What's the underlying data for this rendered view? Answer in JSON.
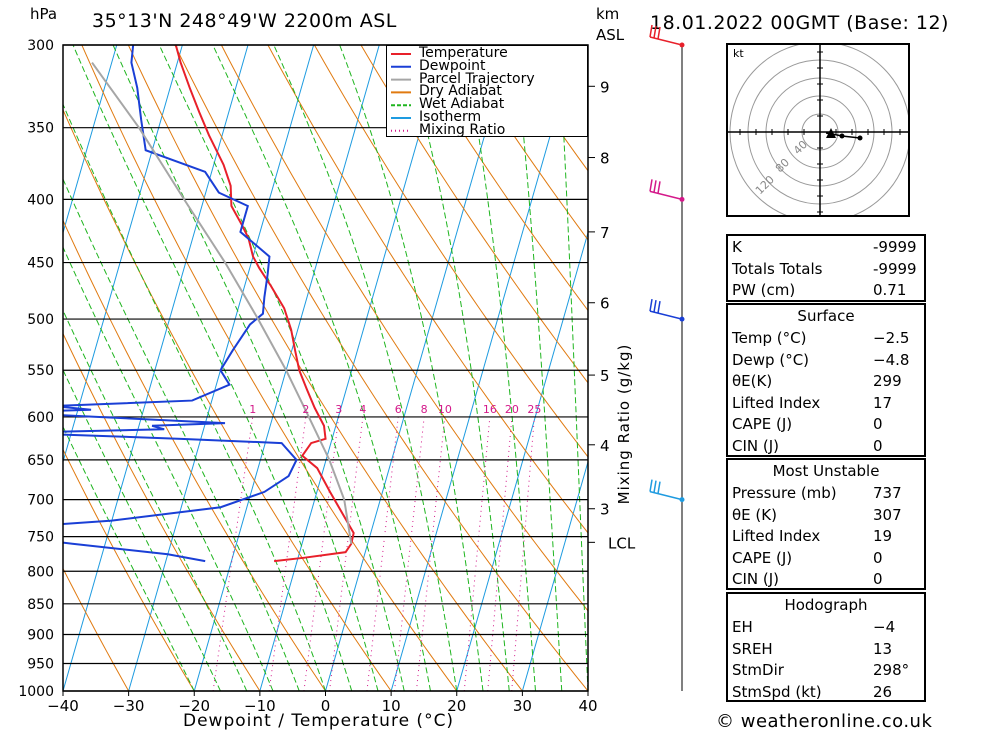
{
  "header": {
    "pressure_unit": "hPa",
    "location": "35°13'N  248°49'W  2200m  ASL",
    "km_unit": "km",
    "km_sub": "ASL",
    "datetime": "18.01.2022  00GMT  (Base: 12)"
  },
  "chart_data": {
    "type": "skew-t",
    "xlabel": "Dewpoint / Temperature (°C)",
    "ylabel_left": "hPa",
    "ylabel_right": "Mixing Ratio (g/kg)",
    "x_ticks": [
      -40,
      -30,
      -20,
      -10,
      0,
      10,
      20,
      30,
      40
    ],
    "x_tick_labels": [
      "−40",
      "−30",
      "−20",
      "−10",
      "0",
      "10",
      "20",
      "30",
      "40"
    ],
    "xlim": [
      -40,
      40
    ],
    "pressure_levels": [
      300,
      350,
      400,
      450,
      500,
      550,
      600,
      650,
      700,
      750,
      800,
      850,
      900,
      950,
      1000
    ],
    "ylim": [
      1000,
      300
    ],
    "height_ticks": [
      {
        "label": "9",
        "p": 324
      },
      {
        "label": "8",
        "p": 370
      },
      {
        "label": "7",
        "p": 425
      },
      {
        "label": "6",
        "p": 485
      },
      {
        "label": "5",
        "p": 555
      },
      {
        "label": "4",
        "p": 632
      },
      {
        "label": "3",
        "p": 712
      },
      {
        "label": "LCL",
        "p": 758
      }
    ],
    "mixing_ratio_labels": [
      "1",
      "2",
      "3",
      "4",
      "6",
      "8",
      "10",
      "16",
      "20",
      "25"
    ],
    "mixing_ratio_label_p": 600,
    "legend": {
      "position": "top-right",
      "entries": [
        {
          "name": "Temperature",
          "color": "#e8202a",
          "style": "solid"
        },
        {
          "name": "Dewpoint",
          "color": "#1a3fd6",
          "style": "solid"
        },
        {
          "name": "Parcel Trajectory",
          "color": "#a6a6a6",
          "style": "solid"
        },
        {
          "name": "Dry Adiabat",
          "color": "#e07a10",
          "style": "solid"
        },
        {
          "name": "Wet Adiabat",
          "color": "#1fb51f",
          "style": "dashed"
        },
        {
          "name": "Isotherm",
          "color": "#1e9be0",
          "style": "solid"
        },
        {
          "name": "Mixing Ratio",
          "color": "#d4198a",
          "style": "dotted"
        }
      ]
    },
    "series": [
      {
        "name": "Temperature",
        "color": "#e8202a",
        "points": [
          [
            785,
            -13.5
          ],
          [
            780,
            -9
          ],
          [
            772,
            -3
          ],
          [
            760,
            -2.5
          ],
          [
            745,
            -2.6
          ],
          [
            720,
            -5
          ],
          [
            690,
            -8
          ],
          [
            660,
            -11
          ],
          [
            645,
            -13.8
          ],
          [
            630,
            -13
          ],
          [
            625,
            -11
          ],
          [
            610,
            -11.8
          ],
          [
            590,
            -14
          ],
          [
            570,
            -16
          ],
          [
            550,
            -18
          ],
          [
            530,
            -19.5
          ],
          [
            510,
            -21
          ],
          [
            490,
            -23
          ],
          [
            470,
            -26
          ],
          [
            455,
            -28.5
          ],
          [
            445,
            -30
          ],
          [
            430,
            -31.5
          ],
          [
            420,
            -33
          ],
          [
            405,
            -35.5
          ],
          [
            390,
            -36.5
          ],
          [
            375,
            -38.5
          ],
          [
            355,
            -42
          ],
          [
            340,
            -44.5
          ],
          [
            325,
            -47
          ],
          [
            310,
            -49.5
          ],
          [
            300,
            -51
          ]
        ]
      },
      {
        "name": "Dewpoint",
        "color": "#1a3fd6",
        "points": [
          [
            785,
            -24
          ],
          [
            775,
            -30
          ],
          [
            760,
            -45
          ],
          [
            748,
            -56
          ],
          [
            738,
            -56
          ],
          [
            728,
            -40
          ],
          [
            710,
            -24
          ],
          [
            690,
            -18
          ],
          [
            670,
            -15
          ],
          [
            650,
            -14.5
          ],
          [
            630,
            -17.5
          ],
          [
            625,
            -33
          ],
          [
            618,
            -59
          ],
          [
            614,
            -36
          ],
          [
            610,
            -38
          ],
          [
            607,
            -27
          ],
          [
            595,
            -61
          ],
          [
            592,
            -48
          ],
          [
            588,
            -54
          ],
          [
            582,
            -33
          ],
          [
            565,
            -28
          ],
          [
            550,
            -30
          ],
          [
            530,
            -29
          ],
          [
            505,
            -27.5
          ],
          [
            495,
            -26
          ],
          [
            480,
            -26.5
          ],
          [
            460,
            -27
          ],
          [
            445,
            -27.5
          ],
          [
            425,
            -33
          ],
          [
            405,
            -33
          ],
          [
            395,
            -38
          ],
          [
            380,
            -41
          ],
          [
            365,
            -51
          ],
          [
            345,
            -53
          ],
          [
            325,
            -55
          ],
          [
            310,
            -57
          ],
          [
            300,
            -57.5
          ]
        ]
      },
      {
        "name": "Parcel Trajectory",
        "color": "#a6a6a6",
        "points": [
          [
            760,
            -2.5
          ],
          [
            700,
            -5.5
          ],
          [
            650,
            -9.5
          ],
          [
            600,
            -14.5
          ],
          [
            550,
            -20
          ],
          [
            500,
            -26.5
          ],
          [
            450,
            -34
          ],
          [
            400,
            -43
          ],
          [
            350,
            -53
          ],
          [
            310,
            -63
          ]
        ]
      }
    ],
    "wind_barbs": [
      {
        "p": 300,
        "color": "#e8202a"
      },
      {
        "p": 400,
        "color": "#d4198a"
      },
      {
        "p": 500,
        "color": "#1a3fd6"
      },
      {
        "p": 700,
        "color": "#1e9be0"
      }
    ]
  },
  "hodograph": {
    "unit": "kt",
    "ring_labels": [
      "40",
      "80",
      "120"
    ]
  },
  "indices": {
    "rows": [
      {
        "label": "K",
        "value": "-9999"
      },
      {
        "label": "Totals Totals",
        "value": "-9999"
      },
      {
        "label": "PW (cm)",
        "value": "0.71"
      }
    ]
  },
  "surface": {
    "title": "Surface",
    "rows": [
      {
        "label": "Temp (°C)",
        "value": "−2.5"
      },
      {
        "label": "Dewp (°C)",
        "value": "−4.8"
      },
      {
        "label": "θE(K)",
        "value": "299"
      },
      {
        "label": "Lifted Index",
        "value": "17"
      },
      {
        "label": "CAPE (J)",
        "value": "0"
      },
      {
        "label": "CIN (J)",
        "value": "0"
      }
    ]
  },
  "most_unstable": {
    "title": "Most Unstable",
    "rows": [
      {
        "label": "Pressure (mb)",
        "value": "737"
      },
      {
        "label": "θE (K)",
        "value": "307"
      },
      {
        "label": "Lifted Index",
        "value": "19"
      },
      {
        "label": "CAPE (J)",
        "value": "0"
      },
      {
        "label": "CIN (J)",
        "value": "0"
      }
    ]
  },
  "hodograph_stats": {
    "title": "Hodograph",
    "rows": [
      {
        "label": "EH",
        "value": "−4"
      },
      {
        "label": "SREH",
        "value": "13"
      },
      {
        "label": "StmDir",
        "value": "298°"
      },
      {
        "label": "StmSpd (kt)",
        "value": "26"
      }
    ]
  },
  "footer": {
    "credit": "© weatheronline.co.uk"
  },
  "colors": {
    "temperature": "#e8202a",
    "dewpoint": "#1a3fd6",
    "parcel": "#a6a6a6",
    "dry_adiabat": "#e07a10",
    "wet_adiabat": "#1fb51f",
    "isotherm": "#1e9be0",
    "mixing_ratio": "#d4198a"
  }
}
